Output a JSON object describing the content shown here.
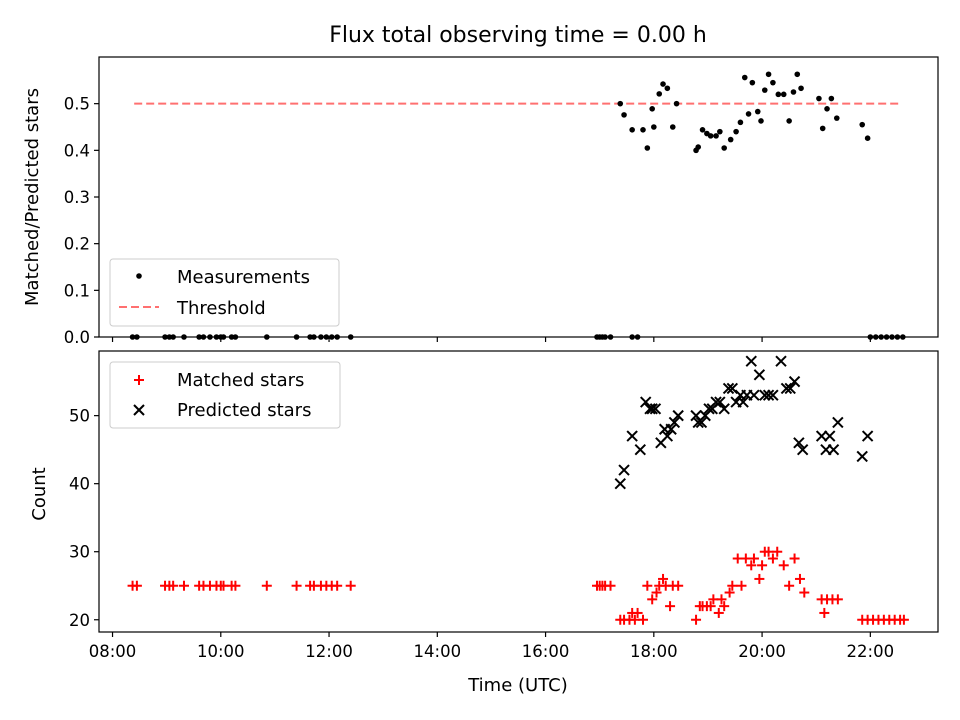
{
  "chart_data": {
    "title": "Flux total observing time = 0.00 h",
    "xlabel": "Time (UTC)",
    "x_unit": "hours UTC",
    "xlim": [
      7.75,
      23.25
    ],
    "x_ticks": [
      8,
      10,
      12,
      14,
      16,
      18,
      20,
      22
    ],
    "x_tick_labels": [
      "08:00",
      "10:00",
      "12:00",
      "14:00",
      "16:00",
      "18:00",
      "20:00",
      "22:00"
    ],
    "grid": false,
    "panels": [
      {
        "type": "scatter",
        "ylabel": "Matched/Predicted stars",
        "ylim": [
          0,
          0.6
        ],
        "y_ticks": [
          0.0,
          0.1,
          0.2,
          0.3,
          0.4,
          0.5
        ],
        "y_tick_labels": [
          "0.0",
          "0.1",
          "0.2",
          "0.3",
          "0.4",
          "0.5"
        ],
        "legend_position": "lower-left",
        "threshold": {
          "name": "Threshold",
          "value": 0.5,
          "x": [
            8.4,
            22.55
          ],
          "color": "#ff7070",
          "style": "dashed"
        },
        "series": [
          {
            "name": "Measurements",
            "marker": "dot",
            "color": "#000000",
            "x": [
              8.37,
              8.45,
              8.97,
              9.05,
              9.12,
              9.32,
              9.6,
              9.68,
              9.8,
              9.92,
              10.0,
              10.05,
              10.2,
              10.27,
              10.85,
              11.4,
              11.65,
              11.72,
              11.85,
              11.95,
              12.05,
              12.15,
              12.4,
              16.95,
              17.0,
              17.05,
              17.1,
              17.2,
              17.6,
              17.7,
              22.0,
              22.1,
              22.2,
              22.3,
              22.4,
              22.5,
              22.6,
              17.38,
              17.45,
              17.6,
              17.8,
              17.88,
              17.97,
              18.0,
              18.1,
              18.17,
              18.25,
              18.35,
              18.42,
              18.78,
              18.82,
              18.9,
              18.98,
              19.05,
              19.15,
              19.22,
              19.3,
              19.42,
              19.52,
              19.6,
              19.68,
              19.75,
              19.82,
              19.92,
              19.98,
              20.05,
              20.12,
              20.2,
              20.3,
              20.4,
              20.5,
              20.58,
              20.65,
              20.72,
              21.05,
              21.12,
              21.2,
              21.28,
              21.38,
              21.85,
              21.95
            ],
            "y": [
              0,
              0,
              0,
              0,
              0,
              0,
              0,
              0,
              0,
              0,
              0,
              0,
              0,
              0,
              0,
              0,
              0,
              0,
              0,
              0,
              0,
              0,
              0,
              0,
              0,
              0,
              0,
              0,
              0,
              0,
              0,
              0,
              0,
              0,
              0,
              0,
              0,
              0.5,
              0.476,
              0.444,
              0.444,
              0.405,
              0.489,
              0.45,
              0.521,
              0.542,
              0.533,
              0.45,
              0.5,
              0.4,
              0.407,
              0.444,
              0.436,
              0.431,
              0.431,
              0.44,
              0.405,
              0.423,
              0.44,
              0.46,
              0.556,
              0.478,
              0.545,
              0.483,
              0.463,
              0.529,
              0.563,
              0.545,
              0.52,
              0.52,
              0.463,
              0.525,
              0.563,
              0.533,
              0.511,
              0.447,
              0.489,
              0.511,
              0.469,
              0.455,
              0.426
            ]
          }
        ]
      },
      {
        "type": "scatter",
        "ylabel": "Count",
        "ylim": [
          18.2,
          59.5
        ],
        "y_ticks": [
          20,
          30,
          40,
          50
        ],
        "y_tick_labels": [
          "20",
          "30",
          "40",
          "50"
        ],
        "legend_position": "upper-left",
        "series": [
          {
            "name": "Matched stars",
            "marker": "plus",
            "color": "#ff0000",
            "x": [
              8.37,
              8.45,
              8.97,
              9.05,
              9.12,
              9.32,
              9.6,
              9.68,
              9.8,
              9.92,
              10.0,
              10.05,
              10.2,
              10.27,
              10.85,
              11.4,
              11.65,
              11.72,
              11.85,
              11.95,
              12.05,
              12.15,
              12.4,
              16.95,
              17.0,
              17.05,
              17.1,
              17.2,
              17.38,
              17.45,
              17.55,
              17.6,
              17.65,
              17.7,
              17.8,
              17.88,
              17.97,
              18.05,
              18.1,
              18.17,
              18.22,
              18.3,
              18.35,
              18.45,
              18.78,
              18.85,
              18.9,
              18.98,
              19.05,
              19.1,
              19.2,
              19.25,
              19.3,
              19.4,
              19.45,
              19.55,
              19.62,
              19.7,
              19.8,
              19.85,
              19.95,
              20.0,
              20.05,
              20.12,
              20.2,
              20.28,
              20.4,
              20.5,
              20.6,
              20.7,
              20.78,
              21.1,
              21.15,
              21.2,
              21.3,
              21.4,
              21.85,
              21.95,
              22.05,
              22.15,
              22.25,
              22.35,
              22.45,
              22.55,
              22.62
            ],
            "y": [
              25,
              25,
              25,
              25,
              25,
              25,
              25,
              25,
              25,
              25,
              25,
              25,
              25,
              25,
              25,
              25,
              25,
              25,
              25,
              25,
              25,
              25,
              25,
              25,
              25,
              25,
              25,
              25,
              20,
              20,
              20,
              21,
              20,
              21,
              20,
              25,
              23,
              24,
              25,
              26,
              25,
              22,
              25,
              25,
              20,
              22,
              22,
              22,
              22,
              23,
              21,
              23,
              22,
              24,
              25,
              29,
              25,
              29,
              28,
              29,
              26,
              28,
              30,
              30,
              29,
              30,
              28,
              25,
              29,
              26,
              24,
              23,
              21,
              23,
              23,
              23,
              20,
              20,
              20,
              20,
              20,
              20,
              20,
              20,
              20
            ]
          },
          {
            "name": "Predicted stars",
            "marker": "x",
            "color": "#000000",
            "x": [
              17.38,
              17.45,
              17.6,
              17.75,
              17.85,
              17.93,
              17.97,
              18.03,
              18.13,
              18.2,
              18.25,
              18.32,
              18.38,
              18.45,
              18.78,
              18.82,
              18.88,
              18.95,
              19.02,
              19.08,
              19.15,
              19.22,
              19.3,
              19.38,
              19.45,
              19.52,
              19.6,
              19.65,
              19.72,
              19.8,
              19.85,
              19.95,
              20.05,
              20.12,
              20.2,
              20.35,
              20.45,
              20.52,
              20.6,
              20.68,
              20.75,
              21.1,
              21.18,
              21.25,
              21.32,
              21.4,
              21.85,
              21.95
            ],
            "y": [
              40,
              42,
              47,
              45,
              52,
              51,
              51,
              51,
              46,
              48,
              47,
              48,
              49,
              50,
              50,
              49,
              49,
              50,
              51,
              51,
              52,
              52,
              51,
              54,
              54,
              52,
              53,
              52,
              53,
              58,
              53,
              56,
              53,
              53,
              53,
              58,
              54,
              54,
              55,
              46,
              45,
              47,
              45,
              47,
              45,
              49,
              44,
              47
            ]
          }
        ]
      }
    ]
  }
}
